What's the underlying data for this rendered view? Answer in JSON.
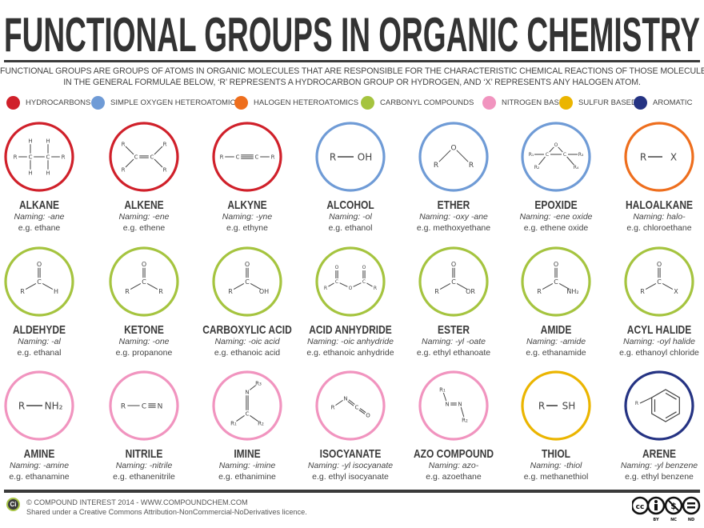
{
  "title": "FUNCTIONAL GROUPS IN ORGANIC CHEMISTRY",
  "intro": [
    "FUNCTIONAL GROUPS ARE GROUPS OF ATOMS IN ORGANIC MOLECULES THAT ARE RESPONSIBLE FOR THE CHARACTERISTIC CHEMICAL REACTIONS OF THOSE MOLECULES.",
    "IN THE GENERAL FORMULAE BELOW, ‘R’ REPRESENTS A HYDROCARBON GROUP OR HYDROGEN, AND ‘X’ REPRESENTS ANY HALOGEN ATOM."
  ],
  "legend": [
    {
      "label": "HYDROCARBONS",
      "color": "#d0202a"
    },
    {
      "label": "SIMPLE OXYGEN HETEROATOMICS",
      "color": "#6f9bd6"
    },
    {
      "label": "HALOGEN HETEROATOMICS",
      "color": "#ee6e1d"
    },
    {
      "label": "CARBONYL COMPOUNDS",
      "color": "#a5c43f"
    },
    {
      "label": "NITROGEN BASED",
      "color": "#f194bf"
    },
    {
      "label": "SULFUR BASED",
      "color": "#ebb500"
    },
    {
      "label": "AROMATIC",
      "color": "#253383"
    }
  ],
  "groups": [
    {
      "name": "ALKANE",
      "naming": "Naming: -ane",
      "example": "e.g. ethane",
      "category": 0,
      "atoms": [
        "R",
        "C",
        "C",
        "R",
        "H",
        "H",
        "H",
        "H"
      ]
    },
    {
      "name": "ALKENE",
      "naming": "Naming: -ene",
      "example": "e.g. ethene",
      "category": 0,
      "atoms": [
        "R",
        "R",
        "C",
        "C",
        "R",
        "R"
      ]
    },
    {
      "name": "ALKYNE",
      "naming": "Naming: -yne",
      "example": "e.g. ethyne",
      "category": 0,
      "atoms": [
        "R",
        "C",
        "C",
        "R"
      ]
    },
    {
      "name": "ALCOHOL",
      "naming": "Naming: -ol",
      "example": "e.g. ethanol",
      "category": 1,
      "atoms": [
        "R",
        "OH"
      ]
    },
    {
      "name": "ETHER",
      "naming": "Naming: -oxy -ane",
      "example": "e.g. methoxyethane",
      "category": 1,
      "atoms": [
        "O",
        "R",
        "R"
      ]
    },
    {
      "name": "EPOXIDE",
      "naming": "Naming: -ene oxide",
      "example": "e.g. ethene oxide",
      "category": 1,
      "atoms": [
        "O",
        "C",
        "C",
        "R₁",
        "R₂",
        "R₃",
        "R₄"
      ]
    },
    {
      "name": "HALOALKANE",
      "naming": "Naming: halo-",
      "example": "e.g. chloroethane",
      "category": 2,
      "atoms": [
        "R",
        "X"
      ]
    },
    {
      "name": "ALDEHYDE",
      "naming": "Naming: -al",
      "example": "e.g. ethanal",
      "category": 3,
      "atoms": [
        "O",
        "C",
        "R",
        "H"
      ]
    },
    {
      "name": "KETONE",
      "naming": "Naming: -one",
      "example": "e.g. propanone",
      "category": 3,
      "atoms": [
        "O",
        "C",
        "R",
        "R"
      ]
    },
    {
      "name": "CARBOXYLIC ACID",
      "naming": "Naming: -oic acid",
      "example": "e.g. ethanoic acid",
      "category": 3,
      "atoms": [
        "O",
        "C",
        "R",
        "OH"
      ]
    },
    {
      "name": "ACID ANHYDRIDE",
      "naming": "Naming: -oic anhydride",
      "example": "e.g. ethanoic anhydride",
      "category": 3,
      "atoms": [
        "O",
        "C",
        "O",
        "C",
        "O",
        "R",
        "R"
      ]
    },
    {
      "name": "ESTER",
      "naming": "Naming: -yl -oate",
      "example": "e.g. ethyl ethanoate",
      "category": 3,
      "atoms": [
        "O",
        "C",
        "R",
        "OR"
      ]
    },
    {
      "name": "AMIDE",
      "naming": "Naming: -amide",
      "example": "e.g. ethanamide",
      "category": 3,
      "atoms": [
        "O",
        "C",
        "R",
        "NH₂"
      ]
    },
    {
      "name": "ACYL HALIDE",
      "naming": "Naming: -oyl halide",
      "example": "e.g. ethanoyl chloride",
      "category": 3,
      "atoms": [
        "O",
        "C",
        "R",
        "X"
      ]
    },
    {
      "name": "AMINE",
      "naming": "Naming: -amine",
      "example": "e.g. ethanamine",
      "category": 4,
      "atoms": [
        "R",
        "NH₂"
      ]
    },
    {
      "name": "NITRILE",
      "naming": "Naming: -nitrile",
      "example": "e.g. ethanenitrile",
      "category": 4,
      "atoms": [
        "R",
        "C",
        "N"
      ]
    },
    {
      "name": "IMINE",
      "naming": "Naming: -imine",
      "example": "e.g. ethanimine",
      "category": 4,
      "atoms": [
        "N",
        "R₃",
        "C",
        "R₁",
        "R₂"
      ]
    },
    {
      "name": "ISOCYANATE",
      "naming": "Naming: -yl isocyanate",
      "example": "e.g. ethyl isocyanate",
      "category": 4,
      "atoms": [
        "R",
        "N",
        "C",
        "O"
      ]
    },
    {
      "name": "AZO COMPOUND",
      "naming": "Naming: azo-",
      "example": "e.g. azoethane",
      "category": 4,
      "atoms": [
        "R₁",
        "N",
        "N",
        "R₂"
      ]
    },
    {
      "name": "THIOL",
      "naming": "Naming: -thiol",
      "example": "e.g. methanethiol",
      "category": 5,
      "atoms": [
        "R",
        "SH"
      ]
    },
    {
      "name": "ARENE",
      "naming": "Naming: -yl benzene",
      "example": "e.g. ethyl benzene",
      "category": 6,
      "atoms": [
        "R"
      ]
    }
  ],
  "footer": {
    "logo": "Ci",
    "line1": "© COMPOUND INTEREST 2014 - WWW.COMPOUNDCHEM.COM",
    "line2": "Shared under a Creative Commons Attribution-NonCommercial-NoDerivatives licence.",
    "badges": [
      "BY",
      "NC",
      "ND"
    ]
  }
}
